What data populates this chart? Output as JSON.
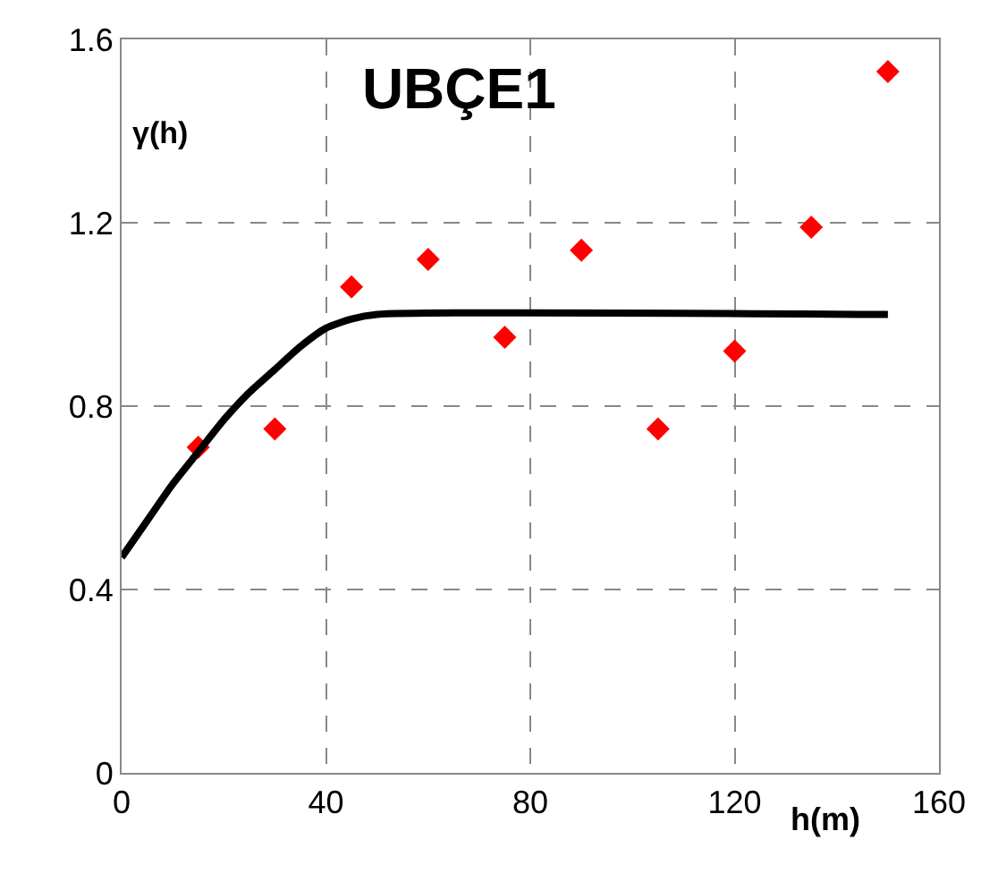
{
  "chart_data": {
    "type": "scatter",
    "title": "UBÇE1",
    "xlabel": "h(m)",
    "ylabel": "γ(h)",
    "xlim": [
      0,
      160
    ],
    "xticks": [
      0,
      40,
      80,
      120,
      160
    ],
    "ylim": [
      0,
      1.6
    ],
    "yticks": [
      0,
      0.4,
      0.8,
      1.2,
      1.6
    ],
    "grid": true,
    "legend": false,
    "series": [
      {
        "marker": "diamond",
        "color": "#ff0000",
        "x": [
          15,
          30,
          45,
          60,
          75,
          90,
          105,
          120,
          135,
          150
        ],
        "values": [
          0.71,
          0.75,
          1.06,
          1.12,
          0.95,
          1.14,
          0.75,
          0.92,
          1.19,
          1.53
        ]
      },
      {
        "type": "line",
        "marker": "none",
        "color": "#000000",
        "x": [
          0,
          5,
          10,
          15,
          20,
          25,
          30,
          35,
          40,
          45,
          50,
          150
        ],
        "values": [
          0.47,
          0.55,
          0.63,
          0.7,
          0.77,
          0.83,
          0.88,
          0.93,
          0.97,
          0.99,
          1.0,
          1.0
        ]
      }
    ]
  }
}
